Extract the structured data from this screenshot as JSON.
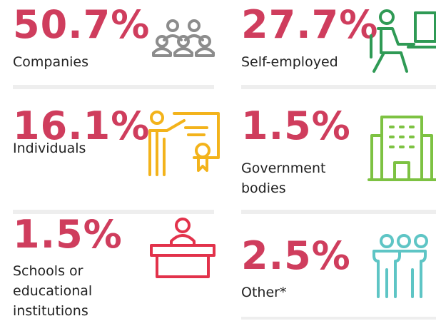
{
  "items": [
    {
      "value": "50.7%",
      "label": "Companies"
    },
    {
      "value": "27.7%",
      "label": "Self-employed"
    },
    {
      "value": "16.1%",
      "label": "Individuals"
    },
    {
      "value": "1.5%",
      "label": "Government bodies"
    },
    {
      "value": "1.5%",
      "label": "Schools or educational institutions"
    },
    {
      "value": "2.5%",
      "label": "Other*"
    }
  ]
}
